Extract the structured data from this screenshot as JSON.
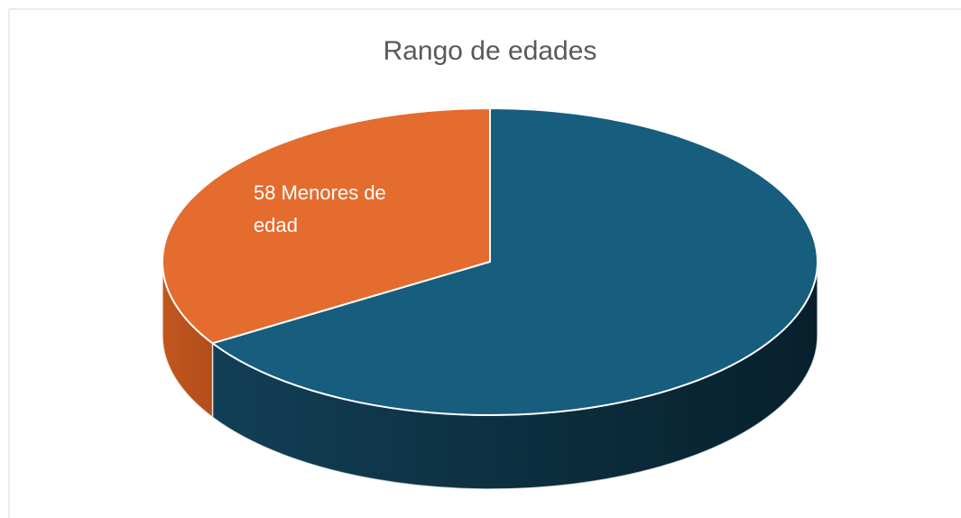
{
  "chart_data": {
    "type": "pie3d",
    "title": "Rango de edades",
    "categories": [
      "Menores de edad",
      null
    ],
    "values": [
      58,
      113
    ],
    "colors": [
      "#e46c2e",
      "#165d7e"
    ]
  }
}
